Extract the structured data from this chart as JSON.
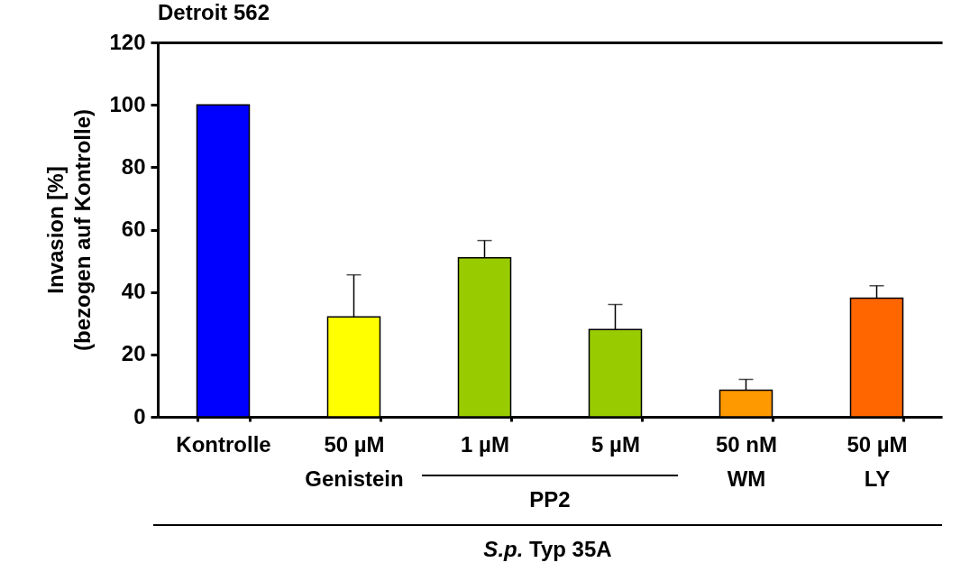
{
  "chart_data": {
    "type": "bar",
    "title": "Detroit 562",
    "ylabel": "Invasion [%]\n(bezogen auf Kontrolle)",
    "categories": [
      "Kontrolle",
      "50 µM\nGenistein",
      "1 µM",
      "5 µM",
      "50 nM\nWM",
      "50 µM\nLY"
    ],
    "values": [
      100,
      32,
      51,
      28,
      8.5,
      38
    ],
    "colors": [
      "#0000ff",
      "#ffff00",
      "#99cc00",
      "#99cc00",
      "#ff9900",
      "#ff6600"
    ],
    "errors": [
      null,
      [
        32,
        45.5
      ],
      [
        51,
        56.5
      ],
      [
        28,
        36
      ],
      [
        8.5,
        12
      ],
      [
        38,
        42
      ]
    ],
    "ylim": [
      0,
      120
    ],
    "yticks": [
      0,
      20,
      40,
      60,
      80,
      100,
      120
    ],
    "grid": false,
    "legend": false,
    "annotations": [
      "PP2",
      "S.p. Typ 35A"
    ]
  }
}
